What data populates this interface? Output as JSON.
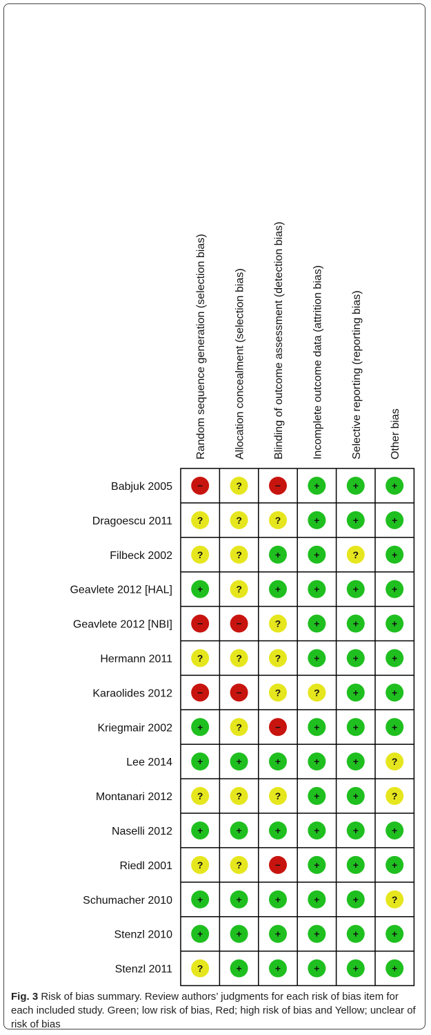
{
  "figure": {
    "columns": [
      "Random sequence generation (selection bias)",
      "Allocation concealment (selection bias)",
      "Blinding of outcome assessment (detection bias)",
      "Incomplete outcome data (attrition bias)",
      "Selective reporting (reporting bias)",
      "Other bias"
    ],
    "key": [
      {
        "symbol": "+",
        "color": "#1fbf1f"
      },
      {
        "symbol": "?",
        "color": "#e6e61e"
      },
      {
        "symbol": "−",
        "color": "#c8140f"
      }
    ],
    "rows": [
      {
        "study": "Babjuk 2005",
        "cells": [
          "−",
          "?",
          "−",
          "+",
          "+",
          "+"
        ]
      },
      {
        "study": "Dragoescu 2011",
        "cells": [
          "?",
          "?",
          "?",
          "+",
          "+",
          "+"
        ]
      },
      {
        "study": "Filbeck 2002",
        "cells": [
          "?",
          "?",
          "+",
          "+",
          "?",
          "+"
        ]
      },
      {
        "study": "Geavlete 2012 [HAL]",
        "cells": [
          "+",
          "?",
          "+",
          "+",
          "+",
          "+"
        ]
      },
      {
        "study": "Geavlete 2012 [NBI]",
        "cells": [
          "−",
          "−",
          "?",
          "+",
          "+",
          "+"
        ]
      },
      {
        "study": "Hermann 2011",
        "cells": [
          "?",
          "?",
          "?",
          "+",
          "+",
          "+"
        ]
      },
      {
        "study": "Karaolides 2012",
        "cells": [
          "−",
          "−",
          "?",
          "?",
          "+",
          "+"
        ]
      },
      {
        "study": "Kriegmair 2002",
        "cells": [
          "+",
          "?",
          "−",
          "+",
          "+",
          "+"
        ]
      },
      {
        "study": "Lee 2014",
        "cells": [
          "+",
          "+",
          "+",
          "+",
          "+",
          "?"
        ]
      },
      {
        "study": "Montanari 2012",
        "cells": [
          "?",
          "?",
          "?",
          "+",
          "+",
          "?"
        ]
      },
      {
        "study": "Naselli 2012",
        "cells": [
          "+",
          "+",
          "+",
          "+",
          "+",
          "+"
        ]
      },
      {
        "study": "Riedl 2001",
        "cells": [
          "?",
          "?",
          "−",
          "+",
          "+",
          "+"
        ]
      },
      {
        "study": "Schumacher 2010",
        "cells": [
          "+",
          "+",
          "+",
          "+",
          "+",
          "?"
        ]
      },
      {
        "study": "Stenzl 2010",
        "cells": [
          "+",
          "+",
          "+",
          "+",
          "+",
          "+"
        ]
      },
      {
        "study": "Stenzl 2011",
        "cells": [
          "?",
          "+",
          "+",
          "+",
          "+",
          "+"
        ]
      }
    ],
    "caption": {
      "label": "Fig. 3",
      "text": "Risk of bias summary. Review authors’ judgments for each risk of bias item for each included study. Green; low risk of bias, Red; high risk of bias and Yellow; unclear of risk of bias"
    }
  }
}
